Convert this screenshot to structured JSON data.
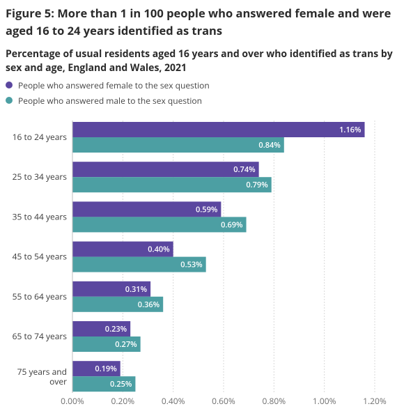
{
  "figure_title": "Figure 5: More than 1 in 100 people who answered female and were aged 16 to 24 years identified as trans",
  "chart_data": {
    "type": "bar",
    "orientation": "horizontal",
    "title": "Percentage of usual residents aged 16 years and over who identified as trans by sex and age, England and Wales, 2021",
    "categories": [
      "16 to 24 years",
      "25 to 34 years",
      "35 to 44 years",
      "45 to 54 years",
      "55 to 64 years",
      "65 to 74 years",
      "75 years and over"
    ],
    "series": [
      {
        "name": "People who answered female to the sex question",
        "color": "#5b479f",
        "values": [
          1.16,
          0.74,
          0.59,
          0.4,
          0.31,
          0.23,
          0.19
        ],
        "labels": [
          "1.16%",
          "0.74%",
          "0.59%",
          "0.40%",
          "0.31%",
          "0.23%",
          "0.19%"
        ]
      },
      {
        "name": "People who answered male to the sex question",
        "color": "#4c9fa3",
        "values": [
          0.84,
          0.79,
          0.69,
          0.53,
          0.36,
          0.27,
          0.25
        ],
        "labels": [
          "0.84%",
          "0.79%",
          "0.69%",
          "0.53%",
          "0.36%",
          "0.27%",
          "0.25%"
        ]
      }
    ],
    "xlim": [
      0,
      1.2
    ],
    "xticks": [
      0,
      0.2,
      0.4,
      0.6,
      0.8,
      1.0,
      1.2
    ],
    "xtick_labels": [
      "0.00%",
      "0.20%",
      "0.40%",
      "0.60%",
      "0.80%",
      "1.00%",
      "1.20%"
    ],
    "grid": "vertical",
    "legend_position": "top-left"
  }
}
